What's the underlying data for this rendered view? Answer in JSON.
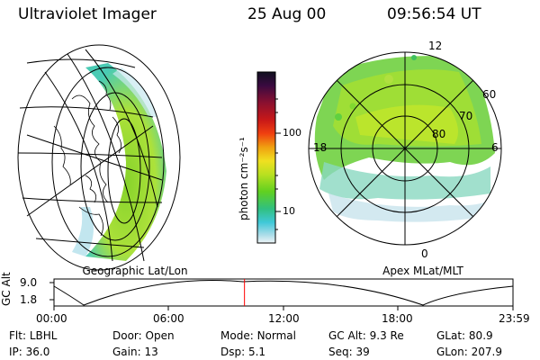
{
  "header": {
    "instrument": "Ultraviolet Imager",
    "date": "25 Aug 00",
    "time": "09:56:54 UT"
  },
  "left_panel": {
    "label": "Geographic Lat/Lon"
  },
  "right_panel": {
    "label": "Apex MLat/MLT",
    "lat_labels": [
      "60",
      "70",
      "80"
    ],
    "mlt_labels": {
      "top": "12",
      "left": "18",
      "right": "6",
      "bottom": "0"
    }
  },
  "colorbar": {
    "unit_label": "photon cm⁻²s⁻¹",
    "ticks": [
      "100",
      "10"
    ],
    "colors": [
      "#1a0a2a",
      "#4a0a40",
      "#8a1030",
      "#c01818",
      "#f05010",
      "#f0a010",
      "#f0e020",
      "#b0e020",
      "#60d020",
      "#30c080",
      "#40c8d8",
      "#a8dce8",
      "#e8f0f4"
    ]
  },
  "timeline": {
    "axis_label": "GC Alt",
    "y_ticks": [
      "9.0",
      "1.8"
    ],
    "x_ticks": [
      "00:00",
      "06:00",
      "12:00",
      "18:00",
      "23:59"
    ],
    "current_time_fraction": 0.415,
    "marker_color": "#ff0000"
  },
  "info": {
    "row1": [
      {
        "label": "Flt:",
        "value": "LBHL"
      },
      {
        "label": "Door:",
        "value": "Open"
      },
      {
        "label": "Mode:",
        "value": "Normal"
      },
      {
        "label": "GC Alt:",
        "value": "9.3 Re"
      },
      {
        "label": "GLat:",
        "value": "80.9"
      }
    ],
    "row2": [
      {
        "label": "IP:",
        "value": "36.0"
      },
      {
        "label": "Gain:",
        "value": "13"
      },
      {
        "label": "Dsp:",
        "value": "5.1"
      },
      {
        "label": "Seq:",
        "value": "39"
      },
      {
        "label": "GLon:",
        "value": "207.9"
      }
    ]
  }
}
